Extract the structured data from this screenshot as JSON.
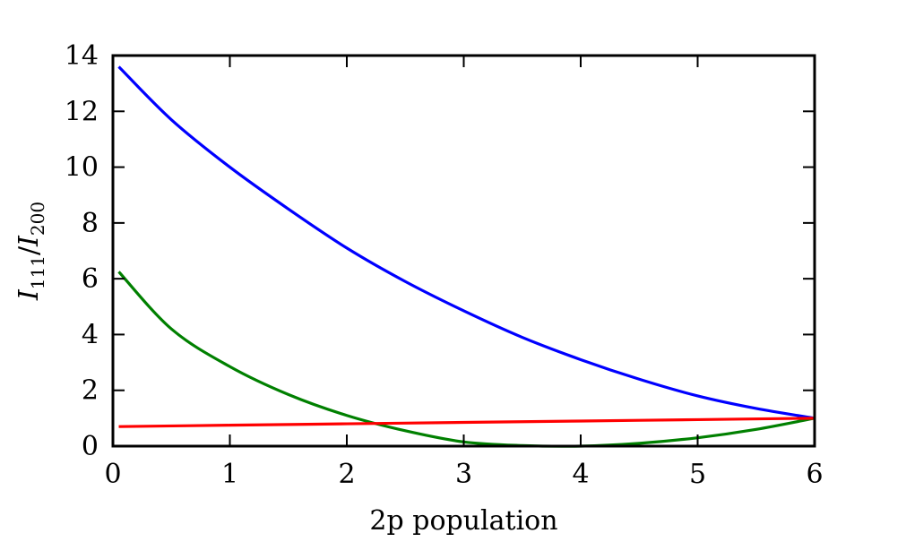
{
  "chart_data": {
    "type": "line",
    "title": "",
    "xlabel": "2p population",
    "ylabel": {
      "base": "I",
      "sub1": "111",
      "sep": "/",
      "base2": "I",
      "sub2": "200"
    },
    "xlim": [
      0,
      6
    ],
    "ylim": [
      0,
      14
    ],
    "xticks": [
      0,
      1,
      2,
      3,
      4,
      5,
      6
    ],
    "yticks": [
      0,
      2,
      4,
      6,
      8,
      10,
      12,
      14
    ],
    "grid": false,
    "legend": "none",
    "series": [
      {
        "color": "#0000ff",
        "x": [
          0.05,
          0.5,
          1,
          1.5,
          2,
          2.5,
          3,
          3.5,
          4,
          4.5,
          5,
          5.5,
          6
        ],
        "y": [
          13.6,
          11.7,
          10.0,
          8.5,
          7.1,
          5.9,
          4.85,
          3.9,
          3.1,
          2.4,
          1.8,
          1.35,
          1.0
        ]
      },
      {
        "color": "#008000",
        "x": [
          0.05,
          0.5,
          1,
          1.5,
          2,
          2.5,
          3,
          3.5,
          4,
          4.5,
          5,
          5.5,
          6
        ],
        "y": [
          6.25,
          4.2,
          2.85,
          1.85,
          1.1,
          0.55,
          0.15,
          0.02,
          0.0,
          0.1,
          0.3,
          0.6,
          1.0
        ]
      },
      {
        "color": "#ff0000",
        "x": [
          0.05,
          1,
          2,
          3,
          4,
          5,
          6
        ],
        "y": [
          0.7,
          0.75,
          0.8,
          0.85,
          0.9,
          0.95,
          1.0
        ]
      }
    ]
  }
}
